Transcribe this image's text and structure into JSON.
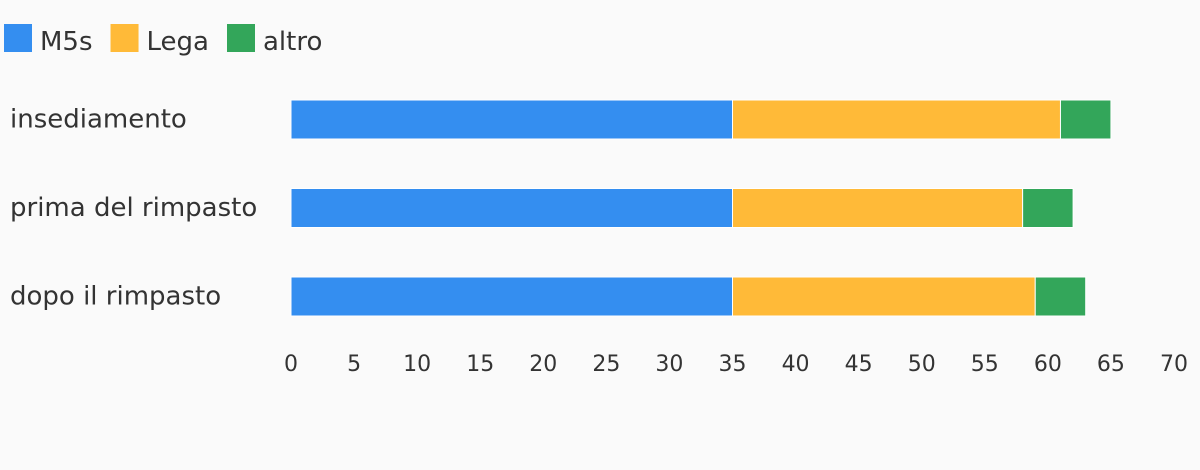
{
  "chart_data": {
    "type": "bar",
    "orientation": "horizontal",
    "stacked": true,
    "categories": [
      "insediamento",
      "prima del rimpasto",
      "dopo il rimpasto"
    ],
    "series": [
      {
        "name": "M5s",
        "color": "#348ef0",
        "values": [
          35,
          35,
          35
        ]
      },
      {
        "name": "Lega",
        "color": "#ffba38",
        "values": [
          26,
          23,
          24
        ]
      },
      {
        "name": "altro",
        "color": "#33a65a",
        "values": [
          4,
          4,
          4
        ]
      }
    ],
    "xlim": [
      0,
      70
    ],
    "xticks": [
      "0",
      "5",
      "10",
      "15",
      "20",
      "25",
      "30",
      "35",
      "40",
      "45",
      "50",
      "55",
      "60",
      "65",
      "70"
    ],
    "grid": false,
    "legend": "top-left"
  }
}
